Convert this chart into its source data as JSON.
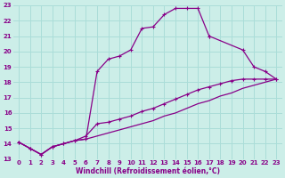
{
  "xlabel": "Windchill (Refroidissement éolien,°C)",
  "background_color": "#cceee8",
  "grid_color": "#aaddd8",
  "line_color": "#880088",
  "xlim": [
    -0.5,
    23.5
  ],
  "ylim": [
    13,
    23
  ],
  "yticks": [
    13,
    14,
    15,
    16,
    17,
    18,
    19,
    20,
    21,
    22,
    23
  ],
  "xticks": [
    0,
    1,
    2,
    3,
    4,
    5,
    6,
    7,
    8,
    9,
    10,
    11,
    12,
    13,
    14,
    15,
    16,
    17,
    18,
    19,
    20,
    21,
    22,
    23
  ],
  "line1_x": [
    0,
    1,
    2,
    3,
    4,
    5,
    6,
    7,
    8,
    9,
    10,
    11,
    12,
    13,
    14,
    15,
    16,
    17
  ],
  "line1_y": [
    14.1,
    13.7,
    13.3,
    13.8,
    14.0,
    14.2,
    14.3,
    18.7,
    19.5,
    19.7,
    20.1,
    21.5,
    21.6,
    22.4,
    22.8,
    22.8,
    22.8,
    21.0
  ],
  "line1b_x": [
    17,
    20,
    21,
    22,
    23
  ],
  "line1b_y": [
    21.0,
    20.1,
    19.0,
    18.7,
    18.2
  ],
  "line2_x": [
    0,
    1,
    2,
    3,
    4,
    5,
    6,
    7,
    8,
    9,
    10,
    11,
    12,
    13,
    14,
    15,
    16,
    17,
    18,
    19,
    20,
    21,
    22,
    23
  ],
  "line2_y": [
    14.1,
    13.7,
    13.3,
    13.8,
    14.0,
    14.2,
    14.5,
    15.3,
    15.4,
    15.6,
    15.8,
    16.1,
    16.3,
    16.6,
    16.9,
    17.2,
    17.5,
    17.7,
    17.9,
    18.1,
    18.2,
    18.2,
    18.2,
    18.2
  ],
  "line3_x": [
    0,
    1,
    2,
    3,
    4,
    5,
    6,
    7,
    8,
    9,
    10,
    11,
    12,
    13,
    14,
    15,
    16,
    17,
    18,
    19,
    20,
    21,
    22,
    23
  ],
  "line3_y": [
    14.1,
    13.7,
    13.3,
    13.8,
    14.0,
    14.2,
    14.3,
    14.5,
    14.7,
    14.9,
    15.1,
    15.3,
    15.5,
    15.8,
    16.0,
    16.3,
    16.6,
    16.8,
    17.1,
    17.3,
    17.6,
    17.8,
    18.0,
    18.2
  ]
}
